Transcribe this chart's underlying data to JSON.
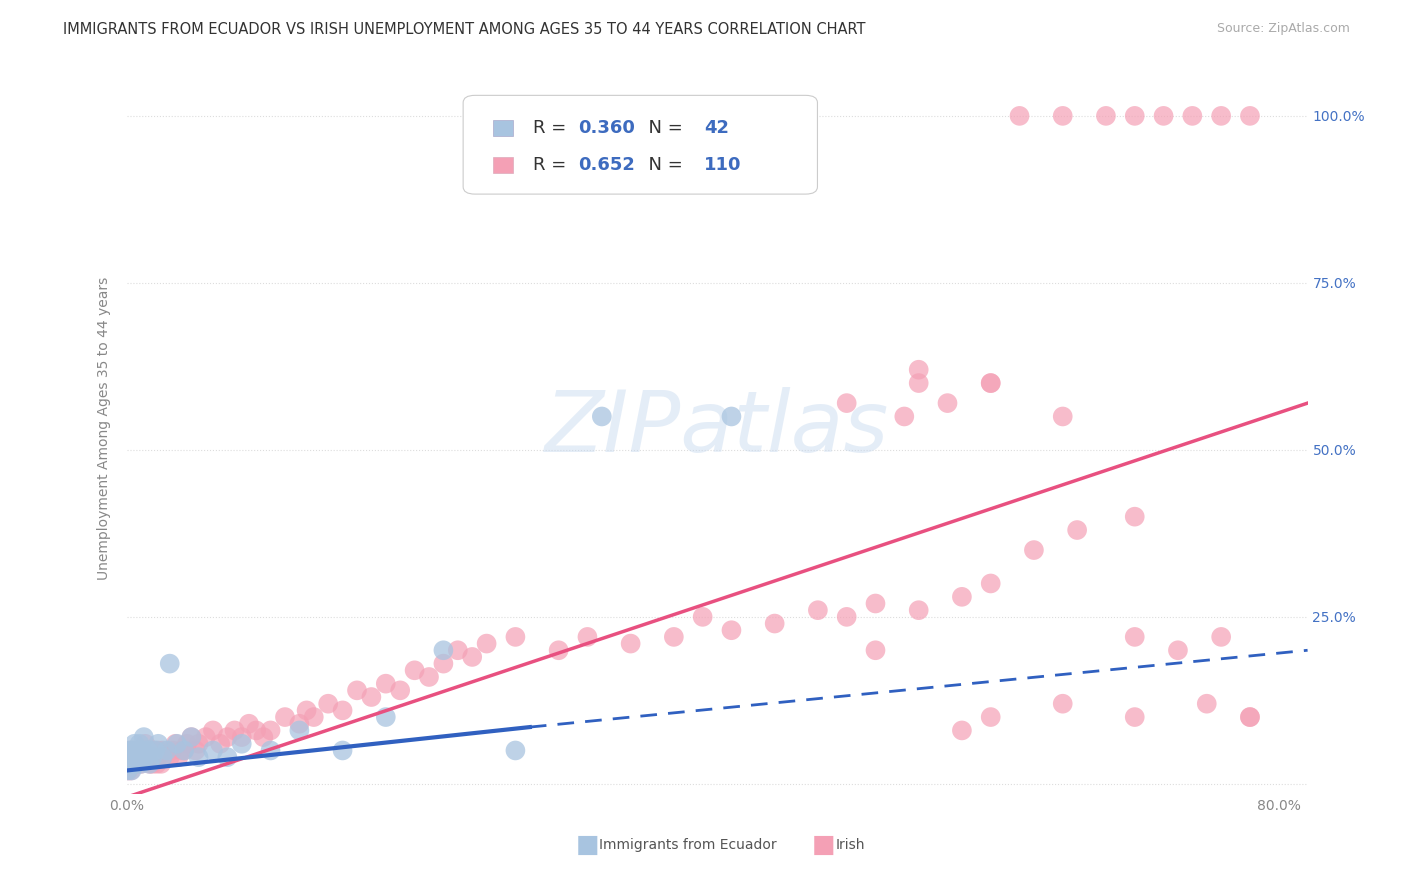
{
  "title": "IMMIGRANTS FROM ECUADOR VS IRISH UNEMPLOYMENT AMONG AGES 35 TO 44 YEARS CORRELATION CHART",
  "source": "Source: ZipAtlas.com",
  "ylabel": "Unemployment Among Ages 35 to 44 years",
  "watermark": "ZIPatlas",
  "xlim": [
    0.0,
    0.82
  ],
  "ylim": [
    -0.015,
    1.08
  ],
  "ecuador_color": "#a8c4e0",
  "irish_color": "#f4a0b5",
  "ecuador_line_color": "#3060c0",
  "irish_line_color": "#e85080",
  "legend_r_color": "#333333",
  "legend_n_color": "#3d6bbf",
  "ecuador_R": 0.36,
  "ecuador_N": 42,
  "irish_R": 0.652,
  "irish_N": 110,
  "ecuador_x": [
    0.0005,
    0.001,
    0.0015,
    0.002,
    0.0025,
    0.003,
    0.0035,
    0.004,
    0.0045,
    0.005,
    0.0055,
    0.006,
    0.007,
    0.008,
    0.009,
    0.01,
    0.011,
    0.012,
    0.013,
    0.015,
    0.016,
    0.018,
    0.02,
    0.022,
    0.025,
    0.028,
    0.03,
    0.035,
    0.04,
    0.045,
    0.05,
    0.06,
    0.07,
    0.08,
    0.1,
    0.12,
    0.15,
    0.18,
    0.22,
    0.27,
    0.33,
    0.42
  ],
  "ecuador_y": [
    0.03,
    0.02,
    0.04,
    0.05,
    0.03,
    0.04,
    0.02,
    0.05,
    0.03,
    0.04,
    0.06,
    0.03,
    0.05,
    0.04,
    0.06,
    0.03,
    0.05,
    0.07,
    0.04,
    0.05,
    0.03,
    0.04,
    0.05,
    0.06,
    0.04,
    0.05,
    0.18,
    0.06,
    0.05,
    0.07,
    0.04,
    0.05,
    0.04,
    0.06,
    0.05,
    0.08,
    0.05,
    0.1,
    0.2,
    0.05,
    0.55,
    0.55
  ],
  "irish_x": [
    0.0005,
    0.001,
    0.0015,
    0.002,
    0.0025,
    0.003,
    0.0035,
    0.004,
    0.0045,
    0.005,
    0.006,
    0.007,
    0.008,
    0.009,
    0.01,
    0.011,
    0.012,
    0.013,
    0.014,
    0.015,
    0.016,
    0.017,
    0.018,
    0.019,
    0.02,
    0.021,
    0.022,
    0.023,
    0.024,
    0.025,
    0.03,
    0.032,
    0.034,
    0.036,
    0.038,
    0.04,
    0.042,
    0.045,
    0.048,
    0.05,
    0.055,
    0.06,
    0.065,
    0.07,
    0.075,
    0.08,
    0.085,
    0.09,
    0.095,
    0.1,
    0.11,
    0.12,
    0.125,
    0.13,
    0.14,
    0.15,
    0.16,
    0.17,
    0.18,
    0.19,
    0.2,
    0.21,
    0.22,
    0.23,
    0.24,
    0.25,
    0.27,
    0.3,
    0.32,
    0.35,
    0.38,
    0.4,
    0.42,
    0.45,
    0.48,
    0.5,
    0.52,
    0.55,
    0.58,
    0.6,
    0.62,
    0.65,
    0.68,
    0.7,
    0.72,
    0.74,
    0.76,
    0.78,
    0.5,
    0.54,
    0.57,
    0.6,
    0.63,
    0.66,
    0.7,
    0.73,
    0.76,
    0.78,
    0.55,
    0.6,
    0.65,
    0.7,
    0.52,
    0.6,
    0.65,
    0.7,
    0.75,
    0.78,
    0.55,
    0.58
  ],
  "irish_y": [
    0.03,
    0.02,
    0.04,
    0.03,
    0.05,
    0.02,
    0.04,
    0.03,
    0.05,
    0.04,
    0.03,
    0.05,
    0.04,
    0.05,
    0.03,
    0.04,
    0.05,
    0.06,
    0.04,
    0.05,
    0.03,
    0.04,
    0.03,
    0.05,
    0.04,
    0.03,
    0.05,
    0.04,
    0.03,
    0.05,
    0.04,
    0.05,
    0.06,
    0.04,
    0.05,
    0.05,
    0.06,
    0.07,
    0.05,
    0.06,
    0.07,
    0.08,
    0.06,
    0.07,
    0.08,
    0.07,
    0.09,
    0.08,
    0.07,
    0.08,
    0.1,
    0.09,
    0.11,
    0.1,
    0.12,
    0.11,
    0.14,
    0.13,
    0.15,
    0.14,
    0.17,
    0.16,
    0.18,
    0.2,
    0.19,
    0.21,
    0.22,
    0.2,
    0.22,
    0.21,
    0.22,
    0.25,
    0.23,
    0.24,
    0.26,
    0.25,
    0.27,
    0.26,
    0.28,
    0.3,
    1.0,
    1.0,
    1.0,
    1.0,
    1.0,
    1.0,
    1.0,
    1.0,
    0.57,
    0.55,
    0.57,
    0.6,
    0.35,
    0.38,
    0.4,
    0.2,
    0.22,
    0.1,
    0.62,
    0.6,
    0.55,
    0.22,
    0.2,
    0.1,
    0.12,
    0.1,
    0.12,
    0.1,
    0.6,
    0.08
  ],
  "background_color": "#ffffff",
  "grid_color": "#dddddd",
  "title_fontsize": 10.5,
  "axis_fontsize": 10,
  "tick_color": "#888888",
  "ylabel_color": "#888888"
}
